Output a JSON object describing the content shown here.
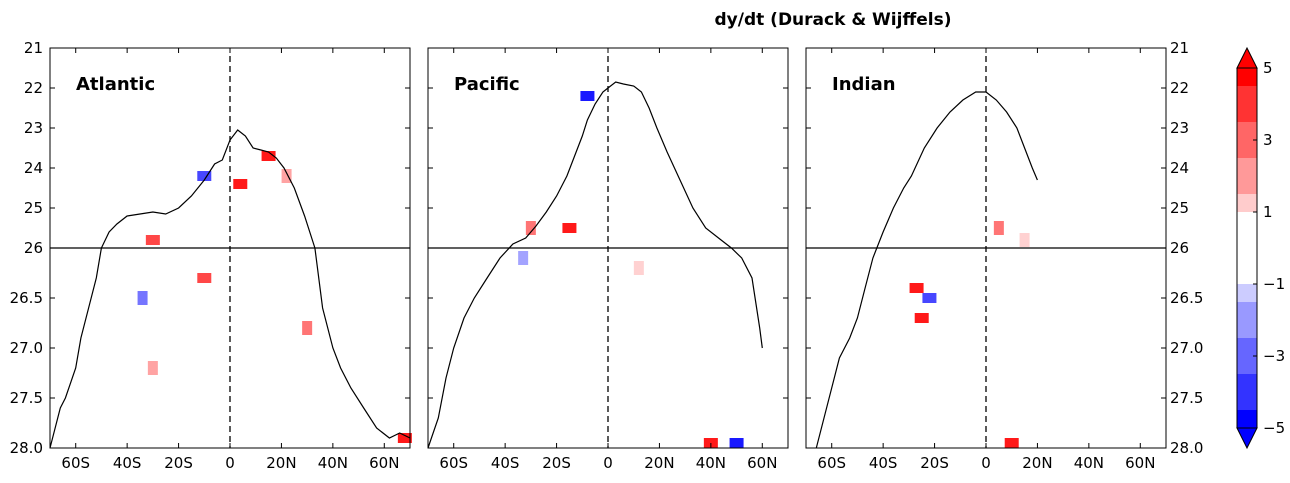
{
  "chart_data": {
    "type": "heatmap",
    "title": "dy/dt (Durack & Wijffels)",
    "xlabel": "",
    "ylabel": "",
    "x_ticks": [
      "60S",
      "40S",
      "20S",
      "0",
      "20N",
      "40N",
      "60N"
    ],
    "x_tick_values": [
      -60,
      -40,
      -20,
      0,
      20,
      40,
      60
    ],
    "xlim": [
      -70,
      70
    ],
    "y_upper": {
      "ticks": [
        "21",
        "22",
        "23",
        "24",
        "25",
        "26"
      ],
      "values": [
        21,
        22,
        23,
        24,
        25,
        26
      ],
      "ylim": [
        26,
        21
      ]
    },
    "y_lower": {
      "ticks": [
        "26.5",
        "27.0",
        "27.5",
        "28.0"
      ],
      "values": [
        26.5,
        27.0,
        27.5,
        28.0
      ],
      "ylim": [
        28,
        26
      ]
    },
    "colorbar": {
      "ticks": [
        "5",
        "3",
        "1",
        "−1",
        "−3",
        "−5"
      ],
      "tick_values": [
        5,
        3,
        1,
        -1,
        -3,
        -5
      ],
      "range": [
        -5,
        5
      ],
      "extend": "both",
      "colormap": "blue-white-red",
      "colors": {
        "neg5": "#0000ff",
        "neg4": "#3333ff",
        "neg3": "#6666ff",
        "neg2": "#9999ff",
        "neg1": "#ccccff",
        "zero": "#ffffff",
        "pos1": "#ffcccc",
        "pos2": "#ff9999",
        "pos3": "#ff6666",
        "pos4": "#ff3333",
        "pos5": "#ff0000"
      }
    },
    "panels": [
      {
        "name": "Atlantic",
        "outline": [
          [
            -70,
            28.0
          ],
          [
            -66,
            27.6
          ],
          [
            -64,
            27.5
          ],
          [
            -60,
            27.2
          ],
          [
            -58,
            26.9
          ],
          [
            -55,
            26.6
          ],
          [
            -52,
            26.3
          ],
          [
            -50,
            26.0
          ],
          [
            -47,
            25.6
          ],
          [
            -44,
            25.4
          ],
          [
            -40,
            25.2
          ],
          [
            -35,
            25.15
          ],
          [
            -30,
            25.1
          ],
          [
            -25,
            25.15
          ],
          [
            -20,
            25.0
          ],
          [
            -15,
            24.7
          ],
          [
            -10,
            24.3
          ],
          [
            -6,
            23.9
          ],
          [
            -3,
            23.8
          ],
          [
            0,
            23.3
          ],
          [
            3,
            23.05
          ],
          [
            6,
            23.2
          ],
          [
            9,
            23.5
          ],
          [
            12,
            23.55
          ],
          [
            15,
            23.6
          ],
          [
            18,
            23.75
          ],
          [
            21,
            24.0
          ],
          [
            25,
            24.5
          ],
          [
            29,
            25.2
          ],
          [
            33,
            26.0
          ],
          [
            36,
            26.6
          ],
          [
            40,
            27.0
          ],
          [
            43,
            27.2
          ],
          [
            47,
            27.4
          ],
          [
            52,
            27.6
          ],
          [
            57,
            27.8
          ],
          [
            62,
            27.9
          ],
          [
            66,
            27.85
          ],
          [
            70,
            27.9
          ]
        ],
        "anomalies": [
          {
            "x": -10,
            "y": 24.2,
            "value": -4
          },
          {
            "x": 4,
            "y": 24.4,
            "value": 5
          },
          {
            "x": 15,
            "y": 23.7,
            "value": 5
          },
          {
            "x": 22,
            "y": 24.2,
            "value": 2
          },
          {
            "x": -30,
            "y": 25.8,
            "value": 4
          },
          {
            "x": -34,
            "y": 26.5,
            "value": -3
          },
          {
            "x": -10,
            "y": 26.3,
            "value": 4
          },
          {
            "x": 30,
            "y": 26.8,
            "value": 3
          },
          {
            "x": -30,
            "y": 27.2,
            "value": 2
          },
          {
            "x": 68,
            "y": 27.9,
            "value": 5
          }
        ]
      },
      {
        "name": "Pacific",
        "outline": [
          [
            -70,
            28.0
          ],
          [
            -66,
            27.7
          ],
          [
            -63,
            27.3
          ],
          [
            -60,
            27.0
          ],
          [
            -56,
            26.7
          ],
          [
            -52,
            26.5
          ],
          [
            -47,
            26.3
          ],
          [
            -42,
            26.1
          ],
          [
            -37,
            25.9
          ],
          [
            -32,
            25.75
          ],
          [
            -28,
            25.45
          ],
          [
            -24,
            25.1
          ],
          [
            -20,
            24.7
          ],
          [
            -16,
            24.2
          ],
          [
            -13,
            23.7
          ],
          [
            -10,
            23.2
          ],
          [
            -8,
            22.8
          ],
          [
            -5,
            22.4
          ],
          [
            -2,
            22.1
          ],
          [
            0,
            22.0
          ],
          [
            3,
            21.85
          ],
          [
            6,
            21.9
          ],
          [
            10,
            21.95
          ],
          [
            13,
            22.1
          ],
          [
            16,
            22.5
          ],
          [
            19,
            23.0
          ],
          [
            23,
            23.6
          ],
          [
            28,
            24.3
          ],
          [
            33,
            25.0
          ],
          [
            38,
            25.5
          ],
          [
            44,
            25.8
          ],
          [
            48,
            26.0
          ],
          [
            52,
            26.1
          ],
          [
            56,
            26.3
          ],
          [
            59,
            26.8
          ],
          [
            60,
            27.0
          ]
        ],
        "anomalies": [
          {
            "x": -8,
            "y": 22.2,
            "value": -5
          },
          {
            "x": -15,
            "y": 25.5,
            "value": 5
          },
          {
            "x": -30,
            "y": 25.5,
            "value": 3
          },
          {
            "x": 40,
            "y": 27.95,
            "value": 5
          },
          {
            "x": 50,
            "y": 27.95,
            "value": -5
          },
          {
            "x": -33,
            "y": 26.1,
            "value": -2
          },
          {
            "x": 12,
            "y": 26.2,
            "value": 1
          }
        ]
      },
      {
        "name": "Indian",
        "outline": [
          [
            -66,
            28.0
          ],
          [
            -63,
            27.7
          ],
          [
            -60,
            27.4
          ],
          [
            -57,
            27.1
          ],
          [
            -53,
            26.9
          ],
          [
            -50,
            26.7
          ],
          [
            -47,
            26.4
          ],
          [
            -44,
            26.1
          ],
          [
            -40,
            25.6
          ],
          [
            -36,
            25.0
          ],
          [
            -32,
            24.5
          ],
          [
            -29,
            24.2
          ],
          [
            -24,
            23.5
          ],
          [
            -19,
            23.0
          ],
          [
            -14,
            22.6
          ],
          [
            -9,
            22.3
          ],
          [
            -4,
            22.1
          ],
          [
            0,
            22.1
          ],
          [
            4,
            22.3
          ],
          [
            8,
            22.6
          ],
          [
            12,
            23.0
          ],
          [
            15,
            23.5
          ],
          [
            18,
            24.0
          ],
          [
            20,
            24.3
          ]
        ],
        "anomalies": [
          {
            "x": -27,
            "y": 26.4,
            "value": 5
          },
          {
            "x": -25,
            "y": 26.7,
            "value": 5
          },
          {
            "x": -22,
            "y": 26.5,
            "value": -4
          },
          {
            "x": 10,
            "y": 27.95,
            "value": 5
          },
          {
            "x": 15,
            "y": 25.8,
            "value": 1
          },
          {
            "x": 5,
            "y": 25.5,
            "value": 3
          }
        ]
      }
    ]
  }
}
